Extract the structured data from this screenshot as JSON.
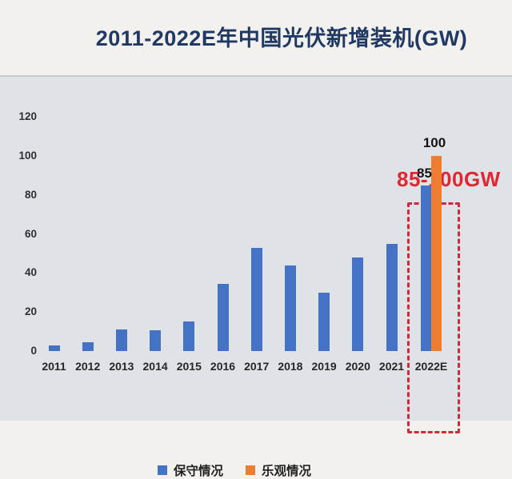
{
  "title": "2011-2022E年中国光伏新增装机(GW)",
  "annotation": "85-100GW",
  "colors": {
    "title": "#1f3864",
    "annotation_red": "#e02630",
    "highlight_box_red": "#d0293c",
    "conservative_blue": "#4472C4",
    "optimistic_orange": "#ED7D31",
    "panel_background": "#dfe2e6",
    "page_background": "#f2f1ee"
  },
  "chart_data": {
    "type": "bar",
    "title": "2011-2022E年中国光伏新增装机(GW)",
    "categories": [
      "2011",
      "2012",
      "2013",
      "2014",
      "2015",
      "2016",
      "2017",
      "2018",
      "2019",
      "2020",
      "2021",
      "2022E"
    ],
    "series": [
      {
        "name": "保守情况",
        "color": "#4472C4",
        "values": [
          2.7,
          4.5,
          11,
          10.6,
          15,
          34.5,
          53,
          44,
          30,
          48,
          55,
          85
        ]
      },
      {
        "name": "乐观情况",
        "color": "#ED7D31",
        "values": [
          null,
          null,
          null,
          null,
          null,
          null,
          null,
          null,
          null,
          null,
          null,
          100
        ]
      }
    ],
    "data_labels": {
      "category": "2022E",
      "labels": [
        "85",
        "100"
      ]
    },
    "xlabel": "",
    "ylabel": "",
    "y_ticks": [
      0,
      20,
      40,
      60,
      80,
      100,
      120
    ],
    "ylim": [
      0,
      130
    ],
    "grid": false,
    "legend_position": "bottom",
    "annotation": "85-100GW"
  }
}
